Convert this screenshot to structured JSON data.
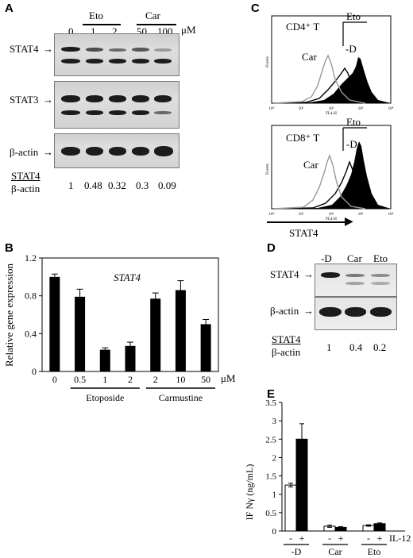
{
  "panels": {
    "a": "A",
    "b": "B",
    "c": "C",
    "d": "D",
    "e": "E"
  },
  "panelA": {
    "group_labels": [
      "Eto",
      "Car"
    ],
    "unit": "μM",
    "lane_concs": [
      "0",
      "1",
      "2",
      "50",
      "100"
    ],
    "blot_labels": [
      "STAT4",
      "STAT3",
      "β-actin"
    ],
    "ratio_num": "STAT4",
    "ratio_den": "β-actin",
    "ratios": [
      "1",
      "0.48",
      "0.32",
      "0.3",
      "0.09"
    ]
  },
  "panelC": {
    "labels": {
      "cd4": "CD4⁺ T",
      "cd8": "CD8⁺ T",
      "car": "Car",
      "eto": "Eto",
      "d": "-D",
      "ylabel": "Events",
      "xlabel": "FL4-H"
    },
    "ticks": [
      "10⁰",
      "10¹",
      "10²",
      "10³",
      "10⁴"
    ],
    "axis_label": "STAT4"
  },
  "panelD": {
    "lanes": [
      "-D",
      "Car",
      "Eto"
    ],
    "blot_labels": [
      "STAT4",
      "β-actin"
    ],
    "ratio_num": "STAT4",
    "ratio_den": "β-actin",
    "ratios": [
      "1",
      "0.4",
      "0.2"
    ]
  },
  "chart_data": [
    {
      "type": "bar",
      "title": "STAT4",
      "ylabel": "Relative gene expression",
      "xlabel": "",
      "unit": "μM",
      "categories": [
        "0",
        "0.5",
        "1",
        "2",
        "2",
        "10",
        "50"
      ],
      "groups": [
        {
          "name": "Etoposide",
          "from": 1,
          "to": 3
        },
        {
          "name": "Carmustine",
          "from": 4,
          "to": 6
        }
      ],
      "values": [
        1.0,
        0.79,
        0.23,
        0.27,
        0.77,
        0.86,
        0.5
      ],
      "errors": [
        0.03,
        0.08,
        0.02,
        0.04,
        0.06,
        0.1,
        0.05
      ],
      "ylim": [
        0,
        1.2
      ],
      "yticks": [
        "0",
        "0.4",
        "0.8",
        "1.2"
      ],
      "colors": {
        "bar": "#000000"
      }
    },
    {
      "type": "bar",
      "ylabel": "IF Nγ (ng/mL)",
      "xlabel": "IL-12",
      "ylim": [
        0,
        3.5
      ],
      "yticks": [
        "0",
        "0.5",
        "1",
        "1.5",
        "2",
        "2.5",
        "3",
        "3.5"
      ],
      "categories": [
        "-D",
        "Car",
        "Eto"
      ],
      "sign_labels": [
        "-",
        "+"
      ],
      "series": [
        {
          "name": "-",
          "values": [
            1.25,
            0.13,
            0.15
          ],
          "errors": [
            0.05,
            0.03,
            0.02
          ],
          "color": "#ffffff"
        },
        {
          "name": "+",
          "values": [
            2.5,
            0.1,
            0.2
          ],
          "errors": [
            0.42,
            0.02,
            0.02
          ],
          "color": "#000000"
        }
      ]
    }
  ]
}
